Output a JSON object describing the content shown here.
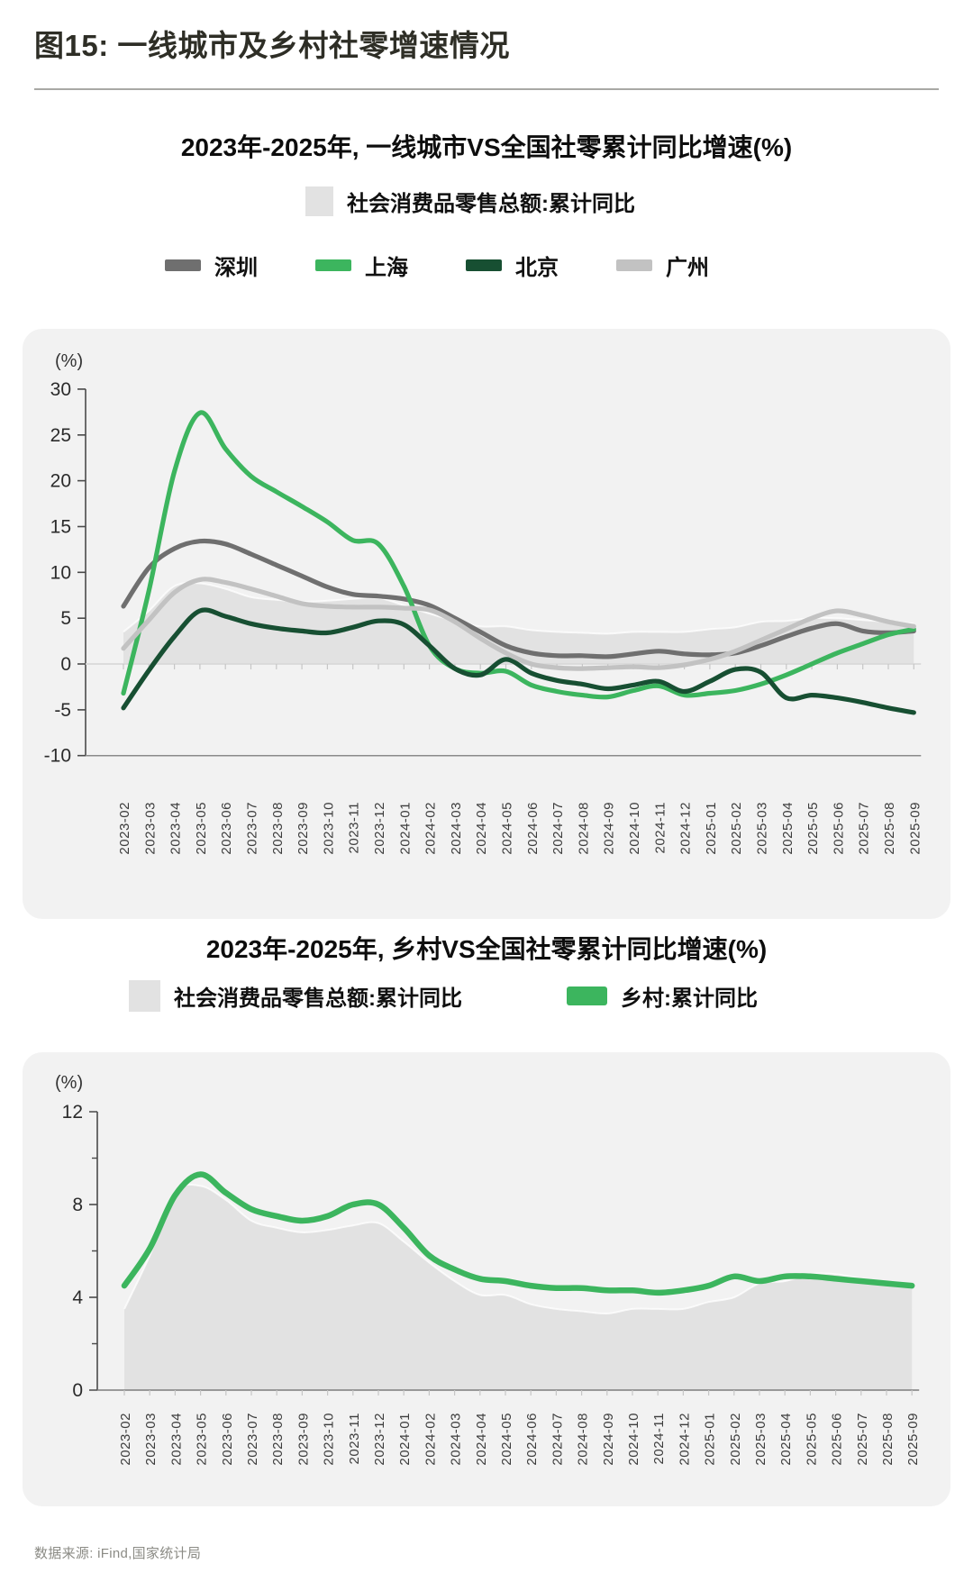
{
  "header": {
    "title": "图15: 一线城市及乡村社零增速情况"
  },
  "footer": {
    "source": "数据来源: iFind,国家统计局"
  },
  "colors": {
    "panel_bg": "#f2f2f2",
    "national_area": "#e2e2e2",
    "shenzhen": "#6f6f6f",
    "shanghai": "#3cb55e",
    "beijing": "#174f32",
    "guangzhou": "#c2c2c2",
    "rural": "#3cb55e"
  },
  "chart_data": [
    {
      "type": "area",
      "title": "2023年-2025年, 一线城市VS全国社零累计同比增速(%)",
      "unit_label": "(%)",
      "ylim": [
        -10,
        30
      ],
      "yticks": [
        30,
        25,
        20,
        15,
        10,
        5,
        0,
        -5,
        -10
      ],
      "grid": false,
      "legend_position": "top",
      "categories": [
        "2023-02",
        "2023-03",
        "2023-04",
        "2023-05",
        "2023-06",
        "2023-07",
        "2023-08",
        "2023-09",
        "2023-10",
        "2023-11",
        "2023-12",
        "2024-01",
        "2024-02",
        "2024-03",
        "2024-04",
        "2024-05",
        "2024-06",
        "2024-07",
        "2024-08",
        "2024-09",
        "2024-10",
        "2024-11",
        "2024-12",
        "2025-01",
        "2025-02",
        "2025-03",
        "2025-04",
        "2025-05",
        "2025-06",
        "2025-07",
        "2025-08",
        "2025-09"
      ],
      "area_series": {
        "name": "社会消费品零售总额:累计同比",
        "color": "#e2e2e2",
        "values": [
          3.5,
          5.8,
          8.5,
          8.8,
          8.2,
          7.3,
          7.0,
          6.8,
          6.9,
          7.1,
          7.2,
          6.4,
          5.5,
          4.7,
          4.1,
          4.1,
          3.7,
          3.5,
          3.4,
          3.3,
          3.5,
          3.5,
          3.5,
          3.8,
          4.0,
          4.6,
          4.7,
          5.0,
          5.0,
          4.8,
          4.6,
          4.4
        ]
      },
      "series": [
        {
          "name": "深圳",
          "color": "#6f6f6f",
          "values": [
            6.3,
            10.5,
            12.6,
            13.4,
            13.1,
            12.0,
            10.8,
            9.6,
            8.4,
            7.6,
            7.4,
            7.1,
            6.4,
            5.0,
            3.5,
            2.0,
            1.2,
            0.9,
            0.9,
            0.8,
            1.1,
            1.4,
            1.1,
            1.0,
            1.2,
            2.0,
            3.0,
            3.9,
            4.4,
            3.6,
            3.4,
            3.6
          ]
        },
        {
          "name": "上海",
          "color": "#3cb55e",
          "values": [
            -3.2,
            8.0,
            21.0,
            27.4,
            23.5,
            20.5,
            18.8,
            17.2,
            15.5,
            13.5,
            13.1,
            8.5,
            2.0,
            -0.5,
            -1.0,
            -0.8,
            -2.3,
            -3.0,
            -3.4,
            -3.6,
            -2.9,
            -2.4,
            -3.4,
            -3.2,
            -2.9,
            -2.2,
            -1.2,
            0.0,
            1.2,
            2.2,
            3.2,
            3.8
          ]
        },
        {
          "name": "北京",
          "color": "#174f32",
          "values": [
            -4.8,
            -0.7,
            3.0,
            5.8,
            5.2,
            4.4,
            3.9,
            3.6,
            3.4,
            4.0,
            4.7,
            4.3,
            2.0,
            -0.5,
            -1.2,
            0.5,
            -1.0,
            -1.8,
            -2.2,
            -2.7,
            -2.3,
            -1.9,
            -3.0,
            -1.9,
            -0.6,
            -0.9,
            -3.7,
            -3.4,
            -3.7,
            -4.2,
            -4.8,
            -5.3
          ]
        },
        {
          "name": "广州",
          "color": "#c2c2c2",
          "values": [
            1.7,
            4.8,
            7.8,
            9.2,
            8.9,
            8.2,
            7.4,
            6.6,
            6.3,
            6.2,
            6.2,
            6.1,
            5.9,
            4.6,
            2.8,
            1.2,
            0.0,
            -0.4,
            -0.5,
            -0.4,
            -0.3,
            -0.4,
            -0.1,
            0.5,
            1.4,
            2.6,
            3.8,
            5.0,
            5.8,
            5.3,
            4.6,
            4.1
          ]
        }
      ]
    },
    {
      "type": "area",
      "title": "2023年-2025年, 乡村VS全国社零累计同比增速(%)",
      "unit_label": "(%)",
      "ylim": [
        0,
        12
      ],
      "yticks": [
        12,
        8,
        4,
        0
      ],
      "yticks_minor": [
        10,
        6,
        2
      ],
      "grid": false,
      "legend_position": "top",
      "categories": [
        "2023-02",
        "2023-03",
        "2023-04",
        "2023-05",
        "2023-06",
        "2023-07",
        "2023-08",
        "2023-09",
        "2023-10",
        "2023-11",
        "2023-12",
        "2024-01",
        "2024-02",
        "2024-03",
        "2024-04",
        "2024-05",
        "2024-06",
        "2024-07",
        "2024-08",
        "2024-09",
        "2024-10",
        "2024-11",
        "2024-12",
        "2025-01",
        "2025-02",
        "2025-03",
        "2025-04",
        "2025-05",
        "2025-06",
        "2025-07",
        "2025-08",
        "2025-09"
      ],
      "area_series": {
        "name": "社会消费品零售总额:累计同比",
        "color": "#e2e2e2",
        "values": [
          3.5,
          5.8,
          8.5,
          8.8,
          8.2,
          7.3,
          7.0,
          6.8,
          6.9,
          7.1,
          7.2,
          6.4,
          5.5,
          4.7,
          4.1,
          4.1,
          3.7,
          3.5,
          3.4,
          3.3,
          3.5,
          3.5,
          3.5,
          3.8,
          4.0,
          4.6,
          4.7,
          5.0,
          5.0,
          4.8,
          4.6,
          4.4
        ]
      },
      "series": [
        {
          "name": "乡村:累计同比",
          "color": "#3cb55e",
          "values": [
            4.5,
            6.1,
            8.4,
            9.3,
            8.5,
            7.8,
            7.5,
            7.3,
            7.5,
            8.0,
            8.0,
            7.0,
            5.8,
            5.2,
            4.8,
            4.7,
            4.5,
            4.4,
            4.4,
            4.3,
            4.3,
            4.2,
            4.3,
            4.5,
            4.9,
            4.7,
            4.9,
            4.9,
            4.8,
            4.7,
            4.6,
            4.5
          ]
        }
      ]
    }
  ]
}
